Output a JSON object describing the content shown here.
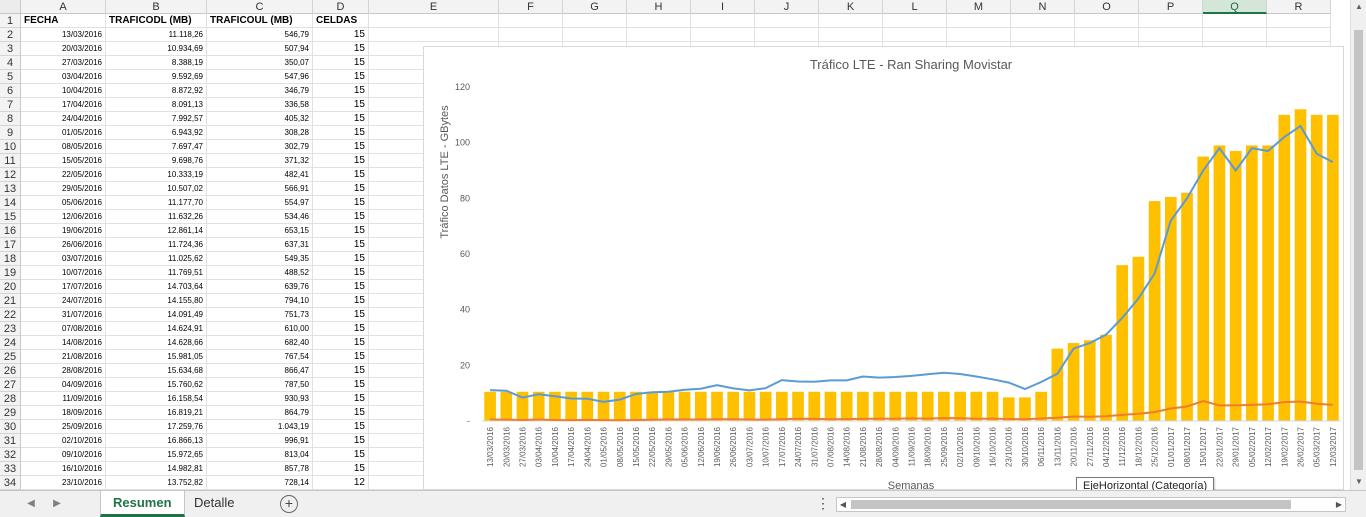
{
  "columns": [
    "A",
    "B",
    "C",
    "D",
    "E",
    "F",
    "G",
    "H",
    "I",
    "J",
    "K",
    "L",
    "M",
    "N",
    "O",
    "P",
    "Q",
    "R"
  ],
  "selected_column": "Q",
  "table": {
    "headers": [
      "FECHA",
      "TRAFICODL (MB)",
      "TRAFICOUL (MB)",
      "CELDAS"
    ],
    "rows": [
      [
        "13/03/2016",
        "11.118,26",
        "546,79",
        "15"
      ],
      [
        "20/03/2016",
        "10.934,69",
        "507,94",
        "15"
      ],
      [
        "27/03/2016",
        "8.388,19",
        "350,07",
        "15"
      ],
      [
        "03/04/2016",
        "9.592,69",
        "547,96",
        "15"
      ],
      [
        "10/04/2016",
        "8.872,92",
        "346,79",
        "15"
      ],
      [
        "17/04/2016",
        "8.091,13",
        "336,58",
        "15"
      ],
      [
        "24/04/2016",
        "7.992,57",
        "405,32",
        "15"
      ],
      [
        "01/05/2016",
        "6.943,92",
        "308,28",
        "15"
      ],
      [
        "08/05/2016",
        "7.697,47",
        "302,79",
        "15"
      ],
      [
        "15/05/2016",
        "9.698,76",
        "371,32",
        "15"
      ],
      [
        "22/05/2016",
        "10.333,19",
        "482,41",
        "15"
      ],
      [
        "29/05/2016",
        "10.507,02",
        "566,91",
        "15"
      ],
      [
        "05/06/2016",
        "11.177,70",
        "554,97",
        "15"
      ],
      [
        "12/06/2016",
        "11.632,26",
        "534,46",
        "15"
      ],
      [
        "19/06/2016",
        "12.861,14",
        "653,15",
        "15"
      ],
      [
        "26/06/2016",
        "11.724,36",
        "637,31",
        "15"
      ],
      [
        "03/07/2016",
        "11.025,62",
        "549,35",
        "15"
      ],
      [
        "10/07/2016",
        "11.769,51",
        "488,52",
        "15"
      ],
      [
        "17/07/2016",
        "14.703,64",
        "639,76",
        "15"
      ],
      [
        "24/07/2016",
        "14.155,80",
        "794,10",
        "15"
      ],
      [
        "31/07/2016",
        "14.091,49",
        "751,73",
        "15"
      ],
      [
        "07/08/2016",
        "14.624,91",
        "610,00",
        "15"
      ],
      [
        "14/08/2016",
        "14.628,66",
        "682,40",
        "15"
      ],
      [
        "21/08/2016",
        "15.981,05",
        "767,54",
        "15"
      ],
      [
        "28/08/2016",
        "15.634,68",
        "866,47",
        "15"
      ],
      [
        "04/09/2016",
        "15.760,62",
        "787,50",
        "15"
      ],
      [
        "11/09/2016",
        "16.158,54",
        "930,93",
        "15"
      ],
      [
        "18/09/2016",
        "16.819,21",
        "864,79",
        "15"
      ],
      [
        "25/09/2016",
        "17.259,76",
        "1.043,19",
        "15"
      ],
      [
        "02/10/2016",
        "16.866,13",
        "996,91",
        "15"
      ],
      [
        "09/10/2016",
        "15.972,65",
        "813,04",
        "15"
      ],
      [
        "16/10/2016",
        "14.982,81",
        "857,78",
        "15"
      ],
      [
        "23/10/2016",
        "13.752,82",
        "728,14",
        "12"
      ]
    ]
  },
  "chart_data": {
    "type": "bar",
    "title": "Tráfico LTE - Ran Sharing Movistar",
    "ylabel": "Tráfico Datos LTE - GBytes",
    "xlabel": "Semanas",
    "ylim": [
      0,
      120
    ],
    "yticks": [
      "-",
      "20",
      "40",
      "60",
      "80",
      "100",
      "120"
    ],
    "categories": [
      "13/03/2016",
      "20/03/2016",
      "27/03/2016",
      "03/04/2016",
      "10/04/2016",
      "17/04/2016",
      "24/04/2016",
      "01/05/2016",
      "08/05/2016",
      "15/05/2016",
      "22/05/2016",
      "29/05/2016",
      "05/06/2016",
      "12/06/2016",
      "19/06/2016",
      "26/06/2016",
      "03/07/2016",
      "10/07/2016",
      "17/07/2016",
      "24/07/2016",
      "31/07/2016",
      "07/08/2016",
      "14/08/2016",
      "21/08/2016",
      "28/08/2016",
      "04/09/2016",
      "11/09/2016",
      "18/09/2016",
      "25/09/2016",
      "02/10/2016",
      "09/10/2016",
      "16/10/2016",
      "23/10/2016",
      "30/10/2016",
      "06/11/2016",
      "13/11/2016",
      "20/11/2016",
      "27/11/2016",
      "04/12/2016",
      "11/12/2016",
      "18/12/2016",
      "25/12/2016",
      "01/01/2017",
      "08/01/2017",
      "15/01/2017",
      "22/01/2017",
      "29/01/2017",
      "05/02/2017",
      "12/02/2017",
      "19/02/2017",
      "26/02/2017",
      "05/03/2017",
      "12/03/2017"
    ],
    "series": [
      {
        "kind": "bar",
        "color": "#ffc000",
        "values": [
          10.5,
          10.5,
          10.5,
          10.5,
          10.5,
          10.5,
          10.5,
          10.5,
          10.5,
          10.5,
          10.5,
          10.5,
          10.5,
          10.5,
          10.5,
          10.5,
          10.5,
          10.5,
          10.5,
          10.5,
          10.5,
          10.5,
          10.5,
          10.5,
          10.5,
          10.5,
          10.5,
          10.5,
          10.5,
          10.5,
          10.5,
          10.5,
          8.5,
          8.5,
          10.5,
          26,
          28,
          29,
          31,
          56,
          59,
          79,
          80.5,
          82,
          95,
          99,
          97,
          99,
          99,
          110,
          112,
          110,
          110
        ]
      },
      {
        "kind": "line",
        "color": "#5b9bd5",
        "values": [
          11.1,
          10.9,
          8.4,
          9.6,
          8.9,
          8.1,
          8.0,
          6.9,
          7.7,
          9.7,
          10.3,
          10.5,
          11.2,
          11.6,
          12.9,
          11.7,
          11.0,
          11.8,
          14.7,
          14.2,
          14.1,
          14.6,
          14.6,
          16.0,
          15.6,
          15.8,
          16.2,
          16.8,
          17.3,
          16.9,
          16.0,
          15.0,
          13.8,
          11.5,
          14.0,
          17.0,
          26.0,
          28.0,
          31.0,
          37.0,
          44.0,
          53.0,
          72.0,
          80.0,
          90.0,
          98.0,
          90.0,
          98.0,
          97.0,
          102.0,
          106.0,
          96.0,
          93.0
        ]
      },
      {
        "kind": "line",
        "color": "#ed7d31",
        "values": [
          0.55,
          0.51,
          0.35,
          0.55,
          0.35,
          0.34,
          0.41,
          0.31,
          0.3,
          0.37,
          0.48,
          0.57,
          0.55,
          0.53,
          0.65,
          0.64,
          0.55,
          0.49,
          0.64,
          0.79,
          0.75,
          0.61,
          0.68,
          0.77,
          0.87,
          0.79,
          0.93,
          0.86,
          1.04,
          1.0,
          0.81,
          0.86,
          0.73,
          0.6,
          0.9,
          1.2,
          1.6,
          1.5,
          1.7,
          2.2,
          2.6,
          3.2,
          4.5,
          5.2,
          7.2,
          5.6,
          5.6,
          5.8,
          6.0,
          6.8,
          7.0,
          6.2,
          5.8
        ]
      }
    ],
    "tooltip": "EjeHorizontal (Categoría)"
  },
  "sheets": [
    {
      "label": "Resumen",
      "active": true
    },
    {
      "label": "Detalle",
      "active": false
    }
  ],
  "tab_add_label": "+",
  "more_label": "⋮"
}
